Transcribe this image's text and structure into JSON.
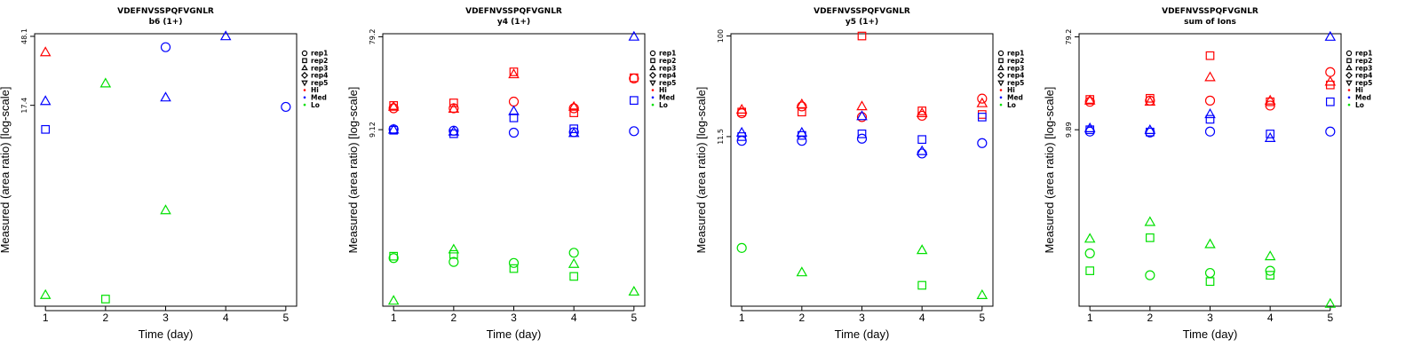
{
  "legend": {
    "reps": [
      "rep1",
      "rep2",
      "rep3",
      "rep4",
      "rep5"
    ],
    "groups": [
      {
        "name": "Hi",
        "color": "#ff0000"
      },
      {
        "name": "Med",
        "color": "#0000ff"
      },
      {
        "name": "Lo",
        "color": "#00e000"
      }
    ]
  },
  "chart_data": [
    {
      "type": "scatter",
      "title": "VDEFNVSSPQFVGNLR",
      "subtitle": "b6 (1+)",
      "xlabel": "Time (day)",
      "ylabel": "Measured (area ratio) [log-scale]",
      "x_ticks": [
        "1",
        "2",
        "3",
        "4",
        "5"
      ],
      "y_ticks": [
        {
          "value": 48.1,
          "label": "48.1"
        },
        {
          "value": 17.4,
          "label": "17.4"
        }
      ],
      "y_scale": "log",
      "ylim": [
        0.9,
        50
      ],
      "grid": false,
      "legend_position": "right",
      "points": [
        {
          "x": 1,
          "y": 38,
          "group": "Hi",
          "marker": "rep3"
        },
        {
          "x": 1,
          "y": 18.5,
          "group": "Med",
          "marker": "rep3"
        },
        {
          "x": 1,
          "y": 12.2,
          "group": "Med",
          "marker": "rep2"
        },
        {
          "x": 1,
          "y": 1.06,
          "group": "Lo",
          "marker": "rep3"
        },
        {
          "x": 2,
          "y": 24,
          "group": "Lo",
          "marker": "rep3"
        },
        {
          "x": 2,
          "y": 1.0,
          "group": "Lo",
          "marker": "rep2"
        },
        {
          "x": 3,
          "y": 41,
          "group": "Med",
          "marker": "rep1"
        },
        {
          "x": 3,
          "y": 19.5,
          "group": "Med",
          "marker": "rep3"
        },
        {
          "x": 3,
          "y": 3.7,
          "group": "Lo",
          "marker": "rep3"
        },
        {
          "x": 4,
          "y": 48.1,
          "group": "Med",
          "marker": "rep3"
        },
        {
          "x": 5,
          "y": 17.0,
          "group": "Med",
          "marker": "rep1"
        }
      ]
    },
    {
      "type": "scatter",
      "title": "VDEFNVSSPQFVGNLR",
      "subtitle": "y4 (1+)",
      "xlabel": "Time (day)",
      "ylabel": "Measured (area ratio) [log-scale]",
      "x_ticks": [
        "1",
        "2",
        "3",
        "4",
        "5"
      ],
      "y_ticks": [
        {
          "value": 79.2,
          "label": "79.2"
        },
        {
          "value": 9.12,
          "label": "9.12"
        }
      ],
      "y_scale": "log",
      "ylim": [
        0.15,
        85
      ],
      "grid": false,
      "legend_position": "right",
      "points": [
        {
          "x": 1,
          "y": 15.0,
          "group": "Hi",
          "marker": "rep1"
        },
        {
          "x": 1,
          "y": 16.0,
          "group": "Hi",
          "marker": "rep2"
        },
        {
          "x": 1,
          "y": 15.5,
          "group": "Hi",
          "marker": "rep3"
        },
        {
          "x": 1,
          "y": 9.2,
          "group": "Med",
          "marker": "rep1"
        },
        {
          "x": 1,
          "y": 9.0,
          "group": "Med",
          "marker": "rep2"
        },
        {
          "x": 1,
          "y": 9.12,
          "group": "Med",
          "marker": "rep3"
        },
        {
          "x": 1,
          "y": 0.46,
          "group": "Lo",
          "marker": "rep1"
        },
        {
          "x": 1,
          "y": 0.48,
          "group": "Lo",
          "marker": "rep2"
        },
        {
          "x": 1,
          "y": 0.17,
          "group": "Lo",
          "marker": "rep3"
        },
        {
          "x": 2,
          "y": 15.0,
          "group": "Hi",
          "marker": "rep1"
        },
        {
          "x": 2,
          "y": 17.0,
          "group": "Hi",
          "marker": "rep2"
        },
        {
          "x": 2,
          "y": 14.8,
          "group": "Hi",
          "marker": "rep3"
        },
        {
          "x": 2,
          "y": 8.9,
          "group": "Med",
          "marker": "rep1"
        },
        {
          "x": 2,
          "y": 8.3,
          "group": "Med",
          "marker": "rep2"
        },
        {
          "x": 2,
          "y": 8.7,
          "group": "Med",
          "marker": "rep3"
        },
        {
          "x": 2,
          "y": 0.42,
          "group": "Lo",
          "marker": "rep1"
        },
        {
          "x": 2,
          "y": 0.5,
          "group": "Lo",
          "marker": "rep2"
        },
        {
          "x": 2,
          "y": 0.56,
          "group": "Lo",
          "marker": "rep3"
        },
        {
          "x": 3,
          "y": 17.5,
          "group": "Hi",
          "marker": "rep1"
        },
        {
          "x": 3,
          "y": 35.0,
          "group": "Hi",
          "marker": "rep2"
        },
        {
          "x": 3,
          "y": 33.0,
          "group": "Hi",
          "marker": "rep3"
        },
        {
          "x": 3,
          "y": 8.5,
          "group": "Med",
          "marker": "rep1"
        },
        {
          "x": 3,
          "y": 12.0,
          "group": "Med",
          "marker": "rep2"
        },
        {
          "x": 3,
          "y": 14.0,
          "group": "Med",
          "marker": "rep3"
        },
        {
          "x": 3,
          "y": 0.41,
          "group": "Lo",
          "marker": "rep1"
        },
        {
          "x": 3,
          "y": 0.36,
          "group": "Lo",
          "marker": "rep2"
        },
        {
          "x": 4,
          "y": 15.0,
          "group": "Hi",
          "marker": "rep1"
        },
        {
          "x": 4,
          "y": 13.5,
          "group": "Hi",
          "marker": "rep2"
        },
        {
          "x": 4,
          "y": 15.5,
          "group": "Hi",
          "marker": "rep3"
        },
        {
          "x": 4,
          "y": 8.6,
          "group": "Med",
          "marker": "rep1"
        },
        {
          "x": 4,
          "y": 9.3,
          "group": "Med",
          "marker": "rep2"
        },
        {
          "x": 4,
          "y": 8.4,
          "group": "Med",
          "marker": "rep3"
        },
        {
          "x": 4,
          "y": 0.52,
          "group": "Lo",
          "marker": "rep1"
        },
        {
          "x": 4,
          "y": 0.3,
          "group": "Lo",
          "marker": "rep2"
        },
        {
          "x": 4,
          "y": 0.4,
          "group": "Lo",
          "marker": "rep3"
        },
        {
          "x": 5,
          "y": 30.0,
          "group": "Hi",
          "marker": "rep1"
        },
        {
          "x": 5,
          "y": 30.5,
          "group": "Hi",
          "marker": "rep2"
        },
        {
          "x": 5,
          "y": 8.8,
          "group": "Med",
          "marker": "rep1"
        },
        {
          "x": 5,
          "y": 18.0,
          "group": "Med",
          "marker": "rep2"
        },
        {
          "x": 5,
          "y": 79.2,
          "group": "Med",
          "marker": "rep3"
        },
        {
          "x": 5,
          "y": 0.21,
          "group": "Lo",
          "marker": "rep3"
        }
      ]
    },
    {
      "type": "scatter",
      "title": "VDEFNVSSPQFVGNLR",
      "subtitle": "y5 (1+)",
      "xlabel": "Time (day)",
      "ylabel": "Measured (area ratio) [log-scale]",
      "x_ticks": [
        "1",
        "2",
        "3",
        "4",
        "5"
      ],
      "y_ticks": [
        {
          "value": 100,
          "label": "100"
        },
        {
          "value": 11.5,
          "label": "11.5"
        }
      ],
      "y_scale": "log",
      "ylim": [
        0.3,
        105
      ],
      "grid": false,
      "legend_position": "right",
      "points": [
        {
          "x": 1,
          "y": 19.0,
          "group": "Hi",
          "marker": "rep1"
        },
        {
          "x": 1,
          "y": 19.5,
          "group": "Hi",
          "marker": "rep2"
        },
        {
          "x": 1,
          "y": 20.5,
          "group": "Hi",
          "marker": "rep3"
        },
        {
          "x": 1,
          "y": 10.5,
          "group": "Med",
          "marker": "rep1"
        },
        {
          "x": 1,
          "y": 11.5,
          "group": "Med",
          "marker": "rep2"
        },
        {
          "x": 1,
          "y": 12.5,
          "group": "Med",
          "marker": "rep3"
        },
        {
          "x": 1,
          "y": 1.05,
          "group": "Lo",
          "marker": "rep1"
        },
        {
          "x": 2,
          "y": 22.0,
          "group": "Hi",
          "marker": "rep1"
        },
        {
          "x": 2,
          "y": 19.5,
          "group": "Hi",
          "marker": "rep2"
        },
        {
          "x": 2,
          "y": 23.0,
          "group": "Hi",
          "marker": "rep3"
        },
        {
          "x": 2,
          "y": 10.5,
          "group": "Med",
          "marker": "rep1"
        },
        {
          "x": 2,
          "y": 11.8,
          "group": "Med",
          "marker": "rep2"
        },
        {
          "x": 2,
          "y": 12.5,
          "group": "Med",
          "marker": "rep3"
        },
        {
          "x": 2,
          "y": 0.62,
          "group": "Lo",
          "marker": "rep3"
        },
        {
          "x": 3,
          "y": 17.5,
          "group": "Hi",
          "marker": "rep1"
        },
        {
          "x": 3,
          "y": 100,
          "group": "Hi",
          "marker": "rep2"
        },
        {
          "x": 3,
          "y": 22.0,
          "group": "Hi",
          "marker": "rep3"
        },
        {
          "x": 3,
          "y": 11.0,
          "group": "Med",
          "marker": "rep1"
        },
        {
          "x": 3,
          "y": 12.2,
          "group": "Med",
          "marker": "rep2"
        },
        {
          "x": 3,
          "y": 17.8,
          "group": "Med",
          "marker": "rep3"
        },
        {
          "x": 4,
          "y": 18.0,
          "group": "Hi",
          "marker": "rep1"
        },
        {
          "x": 4,
          "y": 20.0,
          "group": "Hi",
          "marker": "rep2"
        },
        {
          "x": 4,
          "y": 19.0,
          "group": "Hi",
          "marker": "rep3"
        },
        {
          "x": 4,
          "y": 8.0,
          "group": "Med",
          "marker": "rep1"
        },
        {
          "x": 4,
          "y": 10.8,
          "group": "Med",
          "marker": "rep2"
        },
        {
          "x": 4,
          "y": 8.4,
          "group": "Med",
          "marker": "rep3"
        },
        {
          "x": 4,
          "y": 0.47,
          "group": "Lo",
          "marker": "rep2"
        },
        {
          "x": 4,
          "y": 1.0,
          "group": "Lo",
          "marker": "rep3"
        },
        {
          "x": 5,
          "y": 26.0,
          "group": "Hi",
          "marker": "rep1"
        },
        {
          "x": 5,
          "y": 18.5,
          "group": "Hi",
          "marker": "rep2"
        },
        {
          "x": 5,
          "y": 23.5,
          "group": "Hi",
          "marker": "rep3"
        },
        {
          "x": 5,
          "y": 10.0,
          "group": "Med",
          "marker": "rep1"
        },
        {
          "x": 5,
          "y": 17.5,
          "group": "Med",
          "marker": "rep2"
        },
        {
          "x": 5,
          "y": 0.38,
          "group": "Lo",
          "marker": "rep3"
        }
      ]
    },
    {
      "type": "scatter",
      "title": "VDEFNVSSPQFVGNLR",
      "subtitle": "sum of Ions",
      "xlabel": "Time (day)",
      "ylabel": "Measured (area ratio) [log-scale]",
      "x_ticks": [
        "1",
        "2",
        "3",
        "4",
        "5"
      ],
      "y_ticks": [
        {
          "value": 79.2,
          "label": "79.2"
        },
        {
          "value": 9.89,
          "label": "9.89"
        }
      ],
      "y_scale": "log",
      "ylim": [
        0.19,
        85
      ],
      "grid": false,
      "legend_position": "right",
      "points": [
        {
          "x": 1,
          "y": 18.5,
          "group": "Hi",
          "marker": "rep1"
        },
        {
          "x": 1,
          "y": 19.5,
          "group": "Hi",
          "marker": "rep2"
        },
        {
          "x": 1,
          "y": 19.0,
          "group": "Hi",
          "marker": "rep3"
        },
        {
          "x": 1,
          "y": 9.5,
          "group": "Med",
          "marker": "rep1"
        },
        {
          "x": 1,
          "y": 9.89,
          "group": "Med",
          "marker": "rep2"
        },
        {
          "x": 1,
          "y": 10.2,
          "group": "Med",
          "marker": "rep3"
        },
        {
          "x": 1,
          "y": 0.62,
          "group": "Lo",
          "marker": "rep1"
        },
        {
          "x": 1,
          "y": 0.42,
          "group": "Lo",
          "marker": "rep2"
        },
        {
          "x": 1,
          "y": 0.86,
          "group": "Lo",
          "marker": "rep3"
        },
        {
          "x": 2,
          "y": 19.0,
          "group": "Hi",
          "marker": "rep1"
        },
        {
          "x": 2,
          "y": 20.0,
          "group": "Hi",
          "marker": "rep2"
        },
        {
          "x": 2,
          "y": 18.5,
          "group": "Hi",
          "marker": "rep3"
        },
        {
          "x": 2,
          "y": 9.3,
          "group": "Med",
          "marker": "rep1"
        },
        {
          "x": 2,
          "y": 9.4,
          "group": "Med",
          "marker": "rep2"
        },
        {
          "x": 2,
          "y": 9.8,
          "group": "Med",
          "marker": "rep3"
        },
        {
          "x": 2,
          "y": 0.38,
          "group": "Lo",
          "marker": "rep1"
        },
        {
          "x": 2,
          "y": 0.88,
          "group": "Lo",
          "marker": "rep2"
        },
        {
          "x": 2,
          "y": 1.25,
          "group": "Lo",
          "marker": "rep3"
        },
        {
          "x": 3,
          "y": 19.0,
          "group": "Hi",
          "marker": "rep1"
        },
        {
          "x": 3,
          "y": 52.0,
          "group": "Hi",
          "marker": "rep2"
        },
        {
          "x": 3,
          "y": 32.0,
          "group": "Hi",
          "marker": "rep3"
        },
        {
          "x": 3,
          "y": 9.5,
          "group": "Med",
          "marker": "rep1"
        },
        {
          "x": 3,
          "y": 12.5,
          "group": "Med",
          "marker": "rep2"
        },
        {
          "x": 3,
          "y": 14.0,
          "group": "Med",
          "marker": "rep3"
        },
        {
          "x": 3,
          "y": 0.4,
          "group": "Lo",
          "marker": "rep1"
        },
        {
          "x": 3,
          "y": 0.33,
          "group": "Lo",
          "marker": "rep2"
        },
        {
          "x": 3,
          "y": 0.76,
          "group": "Lo",
          "marker": "rep3"
        },
        {
          "x": 4,
          "y": 17.0,
          "group": "Hi",
          "marker": "rep1"
        },
        {
          "x": 4,
          "y": 18.5,
          "group": "Hi",
          "marker": "rep2"
        },
        {
          "x": 4,
          "y": 19.0,
          "group": "Hi",
          "marker": "rep3"
        },
        {
          "x": 4,
          "y": 9.0,
          "group": "Med",
          "marker": "rep2"
        },
        {
          "x": 4,
          "y": 8.2,
          "group": "Med",
          "marker": "rep3"
        },
        {
          "x": 4,
          "y": 0.42,
          "group": "Lo",
          "marker": "rep1"
        },
        {
          "x": 4,
          "y": 0.38,
          "group": "Lo",
          "marker": "rep2"
        },
        {
          "x": 4,
          "y": 0.58,
          "group": "Lo",
          "marker": "rep3"
        },
        {
          "x": 5,
          "y": 36.0,
          "group": "Hi",
          "marker": "rep1"
        },
        {
          "x": 5,
          "y": 27.0,
          "group": "Hi",
          "marker": "rep2"
        },
        {
          "x": 5,
          "y": 29.0,
          "group": "Hi",
          "marker": "rep3"
        },
        {
          "x": 5,
          "y": 9.5,
          "group": "Med",
          "marker": "rep1"
        },
        {
          "x": 5,
          "y": 18.5,
          "group": "Med",
          "marker": "rep2"
        },
        {
          "x": 5,
          "y": 79.2,
          "group": "Med",
          "marker": "rep3"
        },
        {
          "x": 5,
          "y": 0.2,
          "group": "Lo",
          "marker": "rep3"
        }
      ]
    }
  ]
}
